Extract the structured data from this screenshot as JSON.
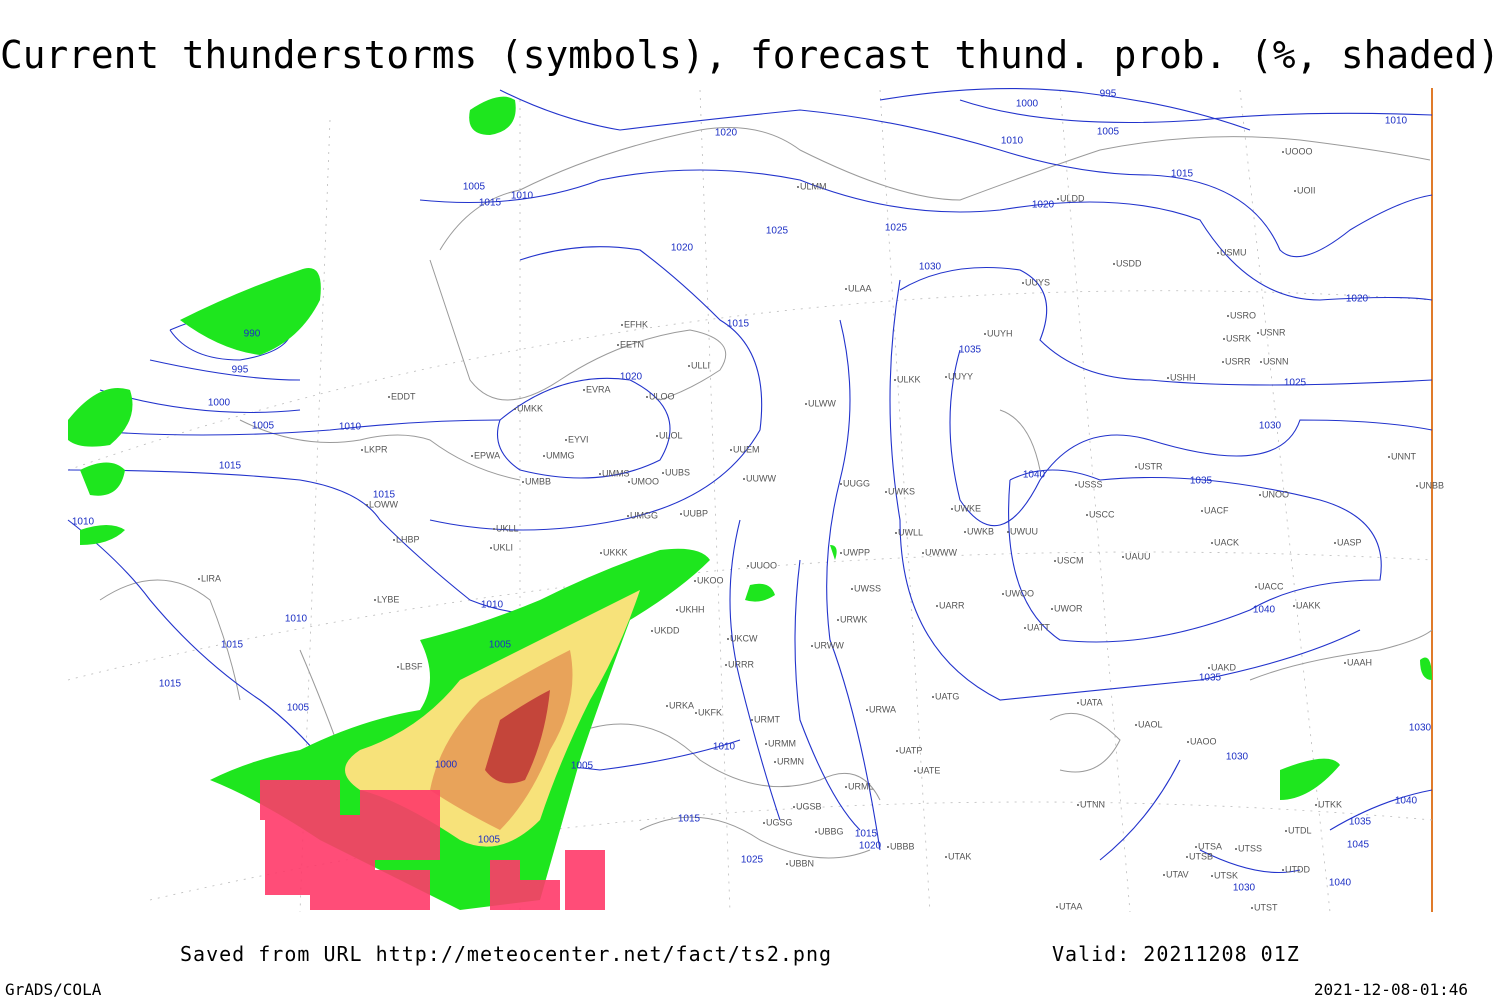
{
  "title": "Current thunderstorms (symbols), forecast thund. prob. (%, shaded)",
  "isobar_labels": [
    995,
    1000,
    1005,
    1010,
    1010,
    1020,
    1005,
    1010,
    1015,
    1015,
    1020,
    1025,
    1025,
    1020,
    1030,
    1020,
    990,
    995,
    1000,
    1005,
    1010,
    1015,
    1015,
    1020,
    1035,
    1025,
    1030,
    1040,
    1035,
    1010,
    1015,
    1010,
    1010,
    1015,
    1015,
    1005,
    1005,
    1040,
    1035,
    1030,
    1010,
    1005,
    1000,
    1005,
    1015,
    1025,
    1015,
    1020,
    1030,
    1040,
    1035,
    1045,
    1040,
    1030
  ],
  "stations": [
    "UOOO",
    "UOII",
    "ULMM",
    "ULDD",
    "USDD",
    "USMU",
    "ULAA",
    "UUYS",
    "USRO",
    "USRK",
    "USNR",
    "USRR",
    "USNN",
    "USHH",
    "UUYH",
    "EFHK",
    "EETN",
    "ULLI",
    "EVRA",
    "ULOO",
    "UMKK",
    "EYVI",
    "ULOL",
    "UMMG",
    "EPWA",
    "UUEM",
    "ULWW",
    "ULKK",
    "UUYY",
    "EDDT",
    "LKPR",
    "UMMS",
    "UMOO",
    "UUBS",
    "UUWW",
    "UMBB",
    "UUGG",
    "UWKS",
    "USTR",
    "USSS",
    "UNOO",
    "UNNT",
    "UNBB",
    "LOWW",
    "UMGG",
    "UUBP",
    "UWKE",
    "UWKB",
    "UWUU",
    "USCC",
    "UACF",
    "UKLL",
    "UKLI",
    "UWLL",
    "LHBP",
    "UACK",
    "UASP",
    "UKKK",
    "UWPP",
    "UWWW",
    "USCM",
    "UAUU",
    "LIRA",
    "UUOO",
    "UKOO",
    "UACC",
    "LYBE",
    "UWSS",
    "UAKK",
    "UKHH",
    "UKDD",
    "UWOO",
    "UWOR",
    "UARR",
    "URWK",
    "UATT",
    "UKCW",
    "URWW",
    "LBSF",
    "URRR",
    "UAKD",
    "UAAH",
    "UATG",
    "UKFK",
    "URKA",
    "URMT",
    "URWA",
    "URMM",
    "UATA",
    "UAOL",
    "UAOO",
    "UATP",
    "URMN",
    "UATE",
    "URML",
    "UTNN",
    "UGSB",
    "UGSG",
    "UBBG",
    "UBBB",
    "UBBN",
    "UTAK",
    "UTSA",
    "UTSB",
    "UTSS",
    "UTAV",
    "UTSK",
    "UTDD",
    "UTDL",
    "UTAA",
    "UTST",
    "UTKK"
  ],
  "footer": {
    "source": "Saved from URL http://meteocenter.net/fact/ts2.png",
    "valid": "Valid: 20211208 01Z",
    "software": "GrADS/COLA",
    "timestamp": "2021-12-08-01:46"
  }
}
